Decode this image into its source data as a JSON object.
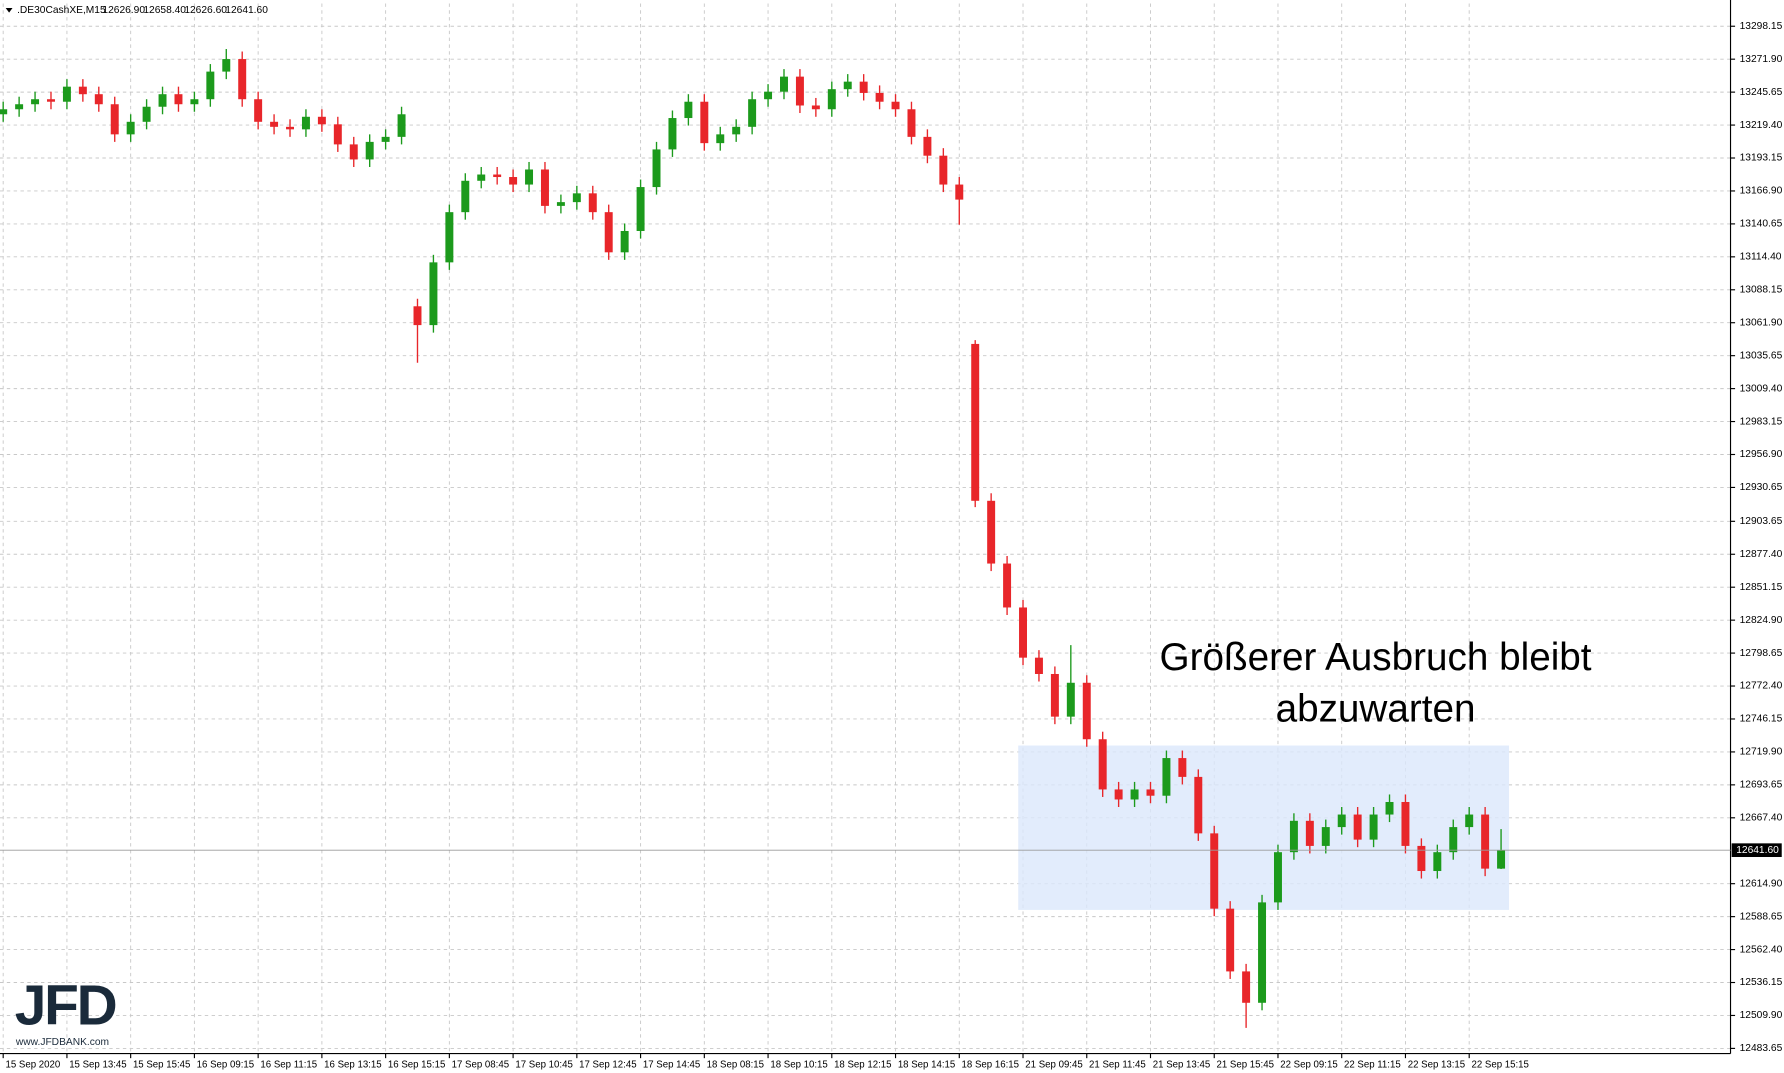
{
  "chart_data": {
    "type": "candlestick",
    "symbol": ".DE30CashXE,M15",
    "ohlc_labels": [
      "12626.90",
      "12658.40",
      "12626.60",
      "12641.60"
    ],
    "annotation": [
      "Größerer Ausbruch bleibt",
      "abzuwarten"
    ],
    "logo": {
      "name": "JFD",
      "url": "www.JFDBANK.com"
    },
    "up_color": "#1c9a1c",
    "down_color": "#e8262a",
    "zone_color": "#dbe7fb",
    "grid": true,
    "last_price": {
      "value": 12641.6,
      "label": "12641.60"
    },
    "zone": {
      "x": [
        63.7,
        94.5
      ],
      "y": [
        12594,
        12725
      ]
    },
    "xlim": [
      -0.2,
      108.4
    ],
    "xticks": [
      {
        "value": 0,
        "label": "15 Sep 2020"
      },
      {
        "value": 4,
        "label": "15 Sep 13:45"
      },
      {
        "value": 8,
        "label": "15 Sep 15:45"
      },
      {
        "value": 12,
        "label": "16 Sep 09:15"
      },
      {
        "value": 16,
        "label": "16 Sep 11:15"
      },
      {
        "value": 20,
        "label": "16 Sep 13:15"
      },
      {
        "value": 24,
        "label": "16 Sep 15:15"
      },
      {
        "value": 28,
        "label": "17 Sep 08:45"
      },
      {
        "value": 32,
        "label": "17 Sep 10:45"
      },
      {
        "value": 36,
        "label": "17 Sep 12:45"
      },
      {
        "value": 40,
        "label": "17 Sep 14:45"
      },
      {
        "value": 44,
        "label": "18 Sep 08:15"
      },
      {
        "value": 48,
        "label": "18 Sep 10:15"
      },
      {
        "value": 52,
        "label": "18 Sep 12:15"
      },
      {
        "value": 56,
        "label": "18 Sep 14:15"
      },
      {
        "value": 60,
        "label": "18 Sep 16:15"
      },
      {
        "value": 64,
        "label": "21 Sep 09:45"
      },
      {
        "value": 68,
        "label": "21 Sep 11:45"
      },
      {
        "value": 72,
        "label": "21 Sep 13:45"
      },
      {
        "value": 76,
        "label": "21 Sep 15:45"
      },
      {
        "value": 80,
        "label": "22 Sep 09:15"
      },
      {
        "value": 84,
        "label": "22 Sep 11:15"
      },
      {
        "value": 88,
        "label": "22 Sep 13:15"
      },
      {
        "value": 92,
        "label": "22 Sep 15:15"
      }
    ],
    "ylim": [
      12479.5,
      13316.3
    ],
    "yticks": [
      13298.15,
      {
        "value": 13271.9,
        "label": "13271.90"
      },
      13245.65,
      {
        "value": 13219.4,
        "label": "13219.40"
      },
      13193.15,
      {
        "value": 13166.9,
        "label": "13166.90"
      },
      13140.65,
      {
        "value": 13114.4,
        "label": "13114.40"
      },
      13088.15,
      {
        "value": 13061.9,
        "label": "13061.90"
      },
      13035.65,
      {
        "value": 13009.4,
        "label": "13009.40"
      },
      12983.15,
      {
        "value": 12956.9,
        "label": "12956.90"
      },
      12930.65,
      12903.65,
      {
        "value": 12877.4,
        "label": "12877.40"
      },
      12851.15,
      {
        "value": 12824.9,
        "label": "12824.90"
      },
      12798.65,
      {
        "value": 12772.4,
        "label": "12772.40"
      },
      12746.15,
      {
        "value": 12719.9,
        "label": "12719.90"
      },
      12693.65,
      {
        "value": 12667.4,
        "label": "12667.40"
      },
      {
        "value": 12614.9,
        "label": "12614.90"
      },
      12588.65,
      {
        "value": 12562.4,
        "label": "12562.40"
      },
      12536.15,
      {
        "value": 12509.9,
        "label": "12509.90"
      },
      12483.65
    ],
    "open": [
      13228,
      13232,
      13236,
      13240,
      13238,
      13250,
      13244,
      13236,
      13212,
      13222,
      13234,
      13244,
      13236,
      13240,
      13262,
      13272,
      13240,
      13222,
      13218,
      13216,
      13226,
      13220,
      13204,
      13192,
      13206,
      13210,
      13075,
      13060,
      13110,
      13150,
      13175,
      13180,
      13178,
      13172,
      13184,
      13155,
      13158,
      13165,
      13150,
      13118,
      13135,
      13170,
      13200,
      13225,
      13238,
      13205,
      13212,
      13218,
      13240,
      13246,
      13258,
      13235,
      13232,
      13248,
      13254,
      13245,
      13238,
      13232,
      13210,
      13195,
      13172,
      13045,
      12920,
      12870,
      12835,
      12795,
      12782,
      12748,
      12775,
      12730,
      12690,
      12682,
      12690,
      12685,
      12715,
      12700,
      12655,
      12595,
      12545,
      12520,
      12600,
      12640,
      12665,
      12645,
      12660,
      12670,
      12650,
      12670,
      12680,
      12645,
      12625,
      12640,
      12660,
      12670,
      12626.9
    ],
    "high": [
      13238,
      13242,
      13246,
      13246,
      13256,
      13256,
      13250,
      13242,
      13228,
      13240,
      13250,
      13250,
      13246,
      13268,
      13280,
      13278,
      13246,
      13228,
      13224,
      13232,
      13232,
      13226,
      13210,
      13212,
      13216,
      13234,
      13081,
      13116,
      13156,
      13181,
      13186,
      13186,
      13184,
      13190,
      13190,
      13164,
      13171,
      13171,
      13156,
      13141,
      13176,
      13206,
      13231,
      13244,
      13244,
      13218,
      13224,
      13246,
      13252,
      13264,
      13264,
      13241,
      13254,
      13260,
      13260,
      13251,
      13244,
      13238,
      13216,
      13201,
      13178,
      13048,
      12926,
      12876,
      12841,
      12801,
      12788,
      12805,
      12781,
      12736,
      12696,
      12696,
      12696,
      12721,
      12721,
      12706,
      12661,
      12601,
      12551,
      12606,
      12646,
      12671,
      12671,
      12666,
      12676,
      12676,
      12676,
      12686,
      12686,
      12651,
      12646,
      12666,
      12676,
      12676,
      12658.4
    ],
    "low": [
      13222,
      13226,
      13230,
      13232,
      13232,
      13238,
      13230,
      13206,
      13206,
      13216,
      13228,
      13230,
      13230,
      13234,
      13256,
      13234,
      13216,
      13212,
      13210,
      13210,
      13214,
      13198,
      13186,
      13186,
      13200,
      13204,
      13030,
      13054,
      13104,
      13144,
      13169,
      13172,
      13166,
      13166,
      13149,
      13149,
      13152,
      13144,
      13112,
      13112,
      13129,
      13164,
      13194,
      13219,
      13199,
      13199,
      13206,
      13212,
      13234,
      13240,
      13229,
      13226,
      13226,
      13242,
      13239,
      13232,
      13226,
      13204,
      13189,
      13166,
      13140,
      12915,
      12864,
      12829,
      12789,
      12776,
      12742,
      12742,
      12724,
      12684,
      12676,
      12676,
      12679,
      12679,
      12694,
      12649,
      12589,
      12539,
      12500,
      12514,
      12594,
      12634,
      12639,
      12639,
      12654,
      12644,
      12644,
      12664,
      12639,
      12619,
      12619,
      12634,
      12654,
      12620.9,
      12626.6
    ],
    "close": [
      13232,
      13236,
      13240,
      13238,
      13250,
      13244,
      13236,
      13212,
      13222,
      13234,
      13244,
      13236,
      13240,
      13262,
      13272,
      13240,
      13222,
      13218,
      13216,
      13226,
      13220,
      13204,
      13192,
      13206,
      13210,
      13228,
      13060,
      13110,
      13150,
      13175,
      13180,
      13178,
      13172,
      13184,
      13155,
      13158,
      13165,
      13150,
      13118,
      13135,
      13170,
      13200,
      13225,
      13238,
      13205,
      13212,
      13218,
      13240,
      13246,
      13258,
      13235,
      13232,
      13248,
      13254,
      13245,
      13238,
      13232,
      13210,
      13195,
      13172,
      13160,
      12920,
      12870,
      12835,
      12795,
      12782,
      12748,
      12775,
      12730,
      12690,
      12682,
      12690,
      12685,
      12715,
      12700,
      12655,
      12595,
      12545,
      12520,
      12600,
      12640,
      12665,
      12645,
      12660,
      12670,
      12650,
      12670,
      12680,
      12645,
      12625,
      12640,
      12660,
      12670,
      12626.9,
      12641.6
    ]
  }
}
